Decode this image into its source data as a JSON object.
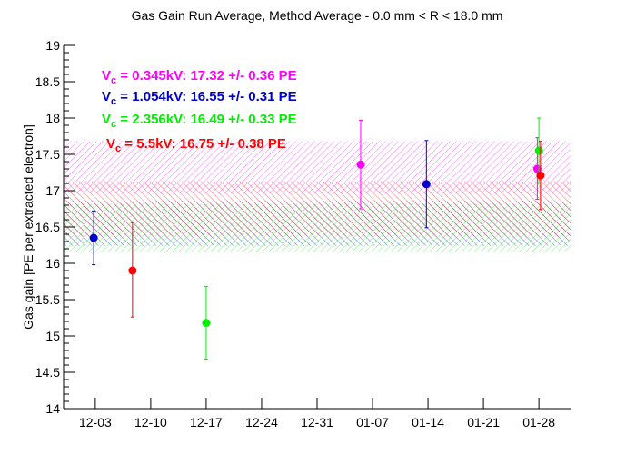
{
  "chart_data": {
    "type": "scatter",
    "title": "Gas Gain Run Average, Method Average - 0.0 mm < R < 18.0 mm",
    "xlabel": "",
    "ylabel": "Gas gain [PE per extracted electron]",
    "ylim": [
      14,
      19
    ],
    "xlim": [
      -4,
      60
    ],
    "x_unit": "days since 12-03",
    "x_ticks": [
      {
        "x": 0,
        "label": "12-03"
      },
      {
        "x": 7,
        "label": "12-10"
      },
      {
        "x": 14,
        "label": "12-17"
      },
      {
        "x": 21,
        "label": "12-24"
      },
      {
        "x": 28,
        "label": "12-31"
      },
      {
        "x": 35,
        "label": "01-07"
      },
      {
        "x": 42,
        "label": "01-14"
      },
      {
        "x": 49,
        "label": "01-21"
      },
      {
        "x": 56,
        "label": "01-28"
      }
    ],
    "y_ticks": [
      14,
      14.5,
      15,
      15.5,
      16,
      16.5,
      17,
      17.5,
      18,
      18.5,
      19
    ],
    "y_tick_labels": [
      "14",
      "14.5",
      "15",
      "15.5",
      "16",
      "16.5",
      "17",
      "17.5",
      "18",
      "18.5",
      "19"
    ],
    "series": [
      {
        "label_prefix": "V",
        "label_sub": "c",
        "label_rest": " = 0.345kV: 17.32 +/- 0.36 PE",
        "color": "#ff00ff",
        "mean": 17.32,
        "err": 0.36,
        "points": [
          {
            "x": 33.5,
            "y": 17.36,
            "ylo": 16.75,
            "yhi": 17.97
          },
          {
            "x": 55.8,
            "y": 17.3,
            "ylo": 16.88,
            "yhi": 17.73
          }
        ]
      },
      {
        "label_prefix": "V",
        "label_sub": "c",
        "label_rest": " = 1.054kV: 16.55 +/- 0.31 PE",
        "color": "#0000cc",
        "mean": 16.55,
        "err": 0.31,
        "points": [
          {
            "x": -0.2,
            "y": 16.35,
            "ylo": 15.98,
            "yhi": 16.72
          },
          {
            "x": 41.8,
            "y": 17.09,
            "ylo": 16.49,
            "yhi": 17.69
          }
        ]
      },
      {
        "label_prefix": "V",
        "label_sub": "c",
        "label_rest": " = 2.356kV: 16.49 +/- 0.33 PE",
        "color": "#00ee00",
        "mean": 16.49,
        "err": 0.33,
        "points": [
          {
            "x": 14.0,
            "y": 15.18,
            "ylo": 14.68,
            "yhi": 15.68
          },
          {
            "x": 56.0,
            "y": 17.55,
            "ylo": 17.1,
            "yhi": 18.0
          }
        ]
      },
      {
        "label_prefix": "V",
        "label_sub": "c",
        "label_rest": " = 5.5kV: 16.75 +/- 0.38 PE",
        "color": "#ff0000",
        "mean": 16.75,
        "err": 0.38,
        "points": [
          {
            "x": 4.7,
            "y": 15.9,
            "ylo": 15.26,
            "yhi": 16.56
          },
          {
            "x": 56.2,
            "y": 17.21,
            "ylo": 16.74,
            "yhi": 17.68
          }
        ]
      }
    ],
    "grid": false,
    "legend_position": "top-left"
  }
}
